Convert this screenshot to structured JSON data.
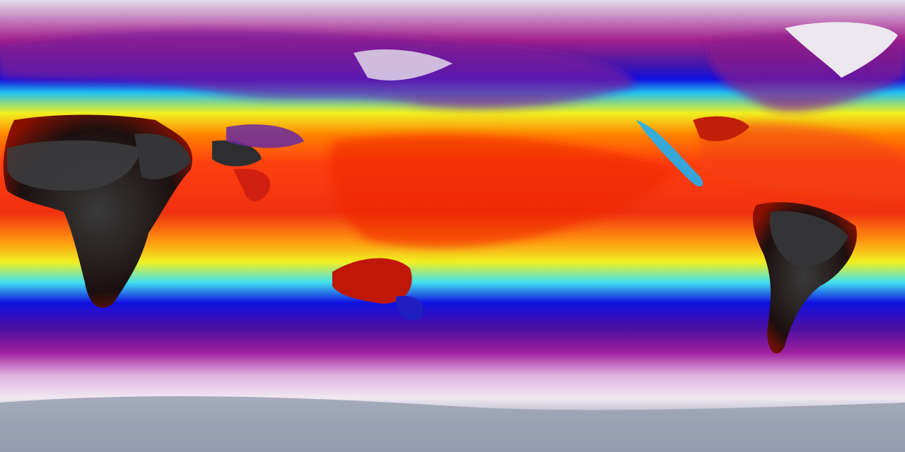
{
  "map": {
    "projection": "equirectangular",
    "colormap": [
      "#d8d0d8",
      "#a0208a",
      "#3020a0",
      "#1010e0",
      "#20c0f0",
      "#f0f020",
      "#ff8000",
      "#f03010",
      "#1a1a1a"
    ],
    "colors": {
      "polar": "#e6dfe8",
      "cold": "#a0208a",
      "cool": "#1010e0",
      "mild": "#20c0f0",
      "warm": "#f0f020",
      "hot": "#ff4010",
      "hottest": "#2a2a2a",
      "antarctica": "#9aa2b2"
    }
  }
}
